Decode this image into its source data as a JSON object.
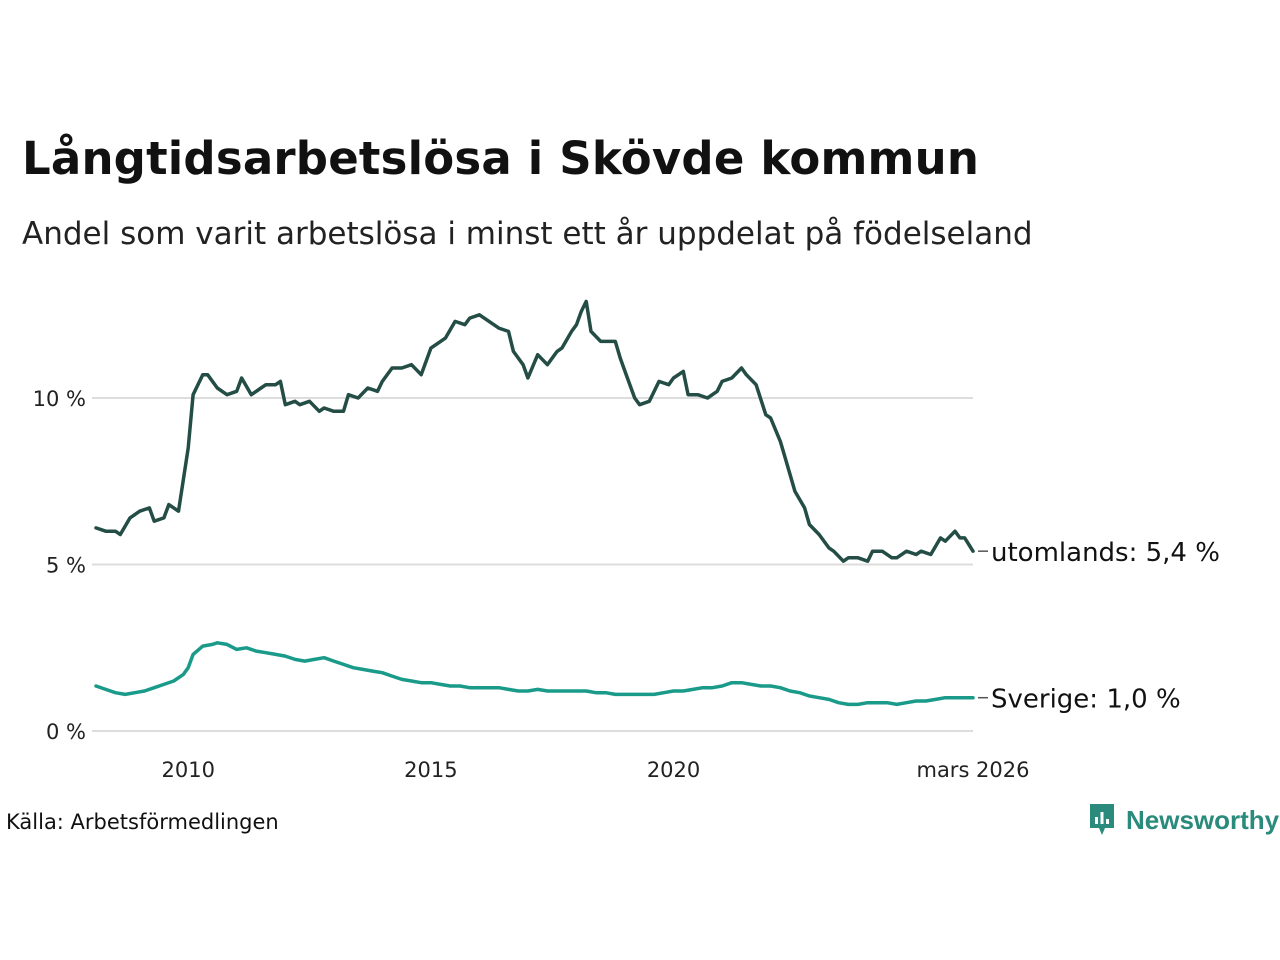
{
  "header": {
    "title": "Långtidsarbetslösa i Skövde kommun",
    "subtitle": "Andel som varit arbetslösa i minst ett år uppdelat på födelseland"
  },
  "footer": {
    "source": "Källa: Arbetsförmedlingen",
    "brand": "Newsworthy"
  },
  "colors": {
    "utomlands": "#234d45",
    "sverige": "#1a9a89",
    "grid": "#dddddd",
    "brand": "#2a8a7c"
  },
  "icons": {
    "brand_logo": "newsworthy-logo-icon"
  },
  "chart_data": {
    "type": "line",
    "title": "Långtidsarbetslösa i Skövde kommun",
    "subtitle": "Andel som varit arbetslösa i minst ett år uppdelat på födelseland",
    "xlabel": "",
    "ylabel": "",
    "xlim": [
      2008.1,
      2026.17
    ],
    "ylim": [
      0,
      13
    ],
    "grid": true,
    "y_ticks": [
      0,
      5,
      10
    ],
    "y_tick_labels": [
      "0 %",
      "5 %",
      "10 %"
    ],
    "x_ticks": [
      2010,
      2015,
      2020,
      2026.17
    ],
    "x_tick_labels": [
      "2010",
      "2015",
      "2020",
      "mars 2026"
    ],
    "series": [
      {
        "name": "utomlands",
        "end_label": "utomlands: 5,4 %",
        "points": [
          [
            2008.1,
            6.1
          ],
          [
            2008.3,
            6.0
          ],
          [
            2008.5,
            6.0
          ],
          [
            2008.6,
            5.9
          ],
          [
            2008.8,
            6.4
          ],
          [
            2009.0,
            6.6
          ],
          [
            2009.2,
            6.7
          ],
          [
            2009.3,
            6.3
          ],
          [
            2009.5,
            6.4
          ],
          [
            2009.6,
            6.8
          ],
          [
            2009.8,
            6.6
          ],
          [
            2010.0,
            8.5
          ],
          [
            2010.1,
            10.1
          ],
          [
            2010.3,
            10.7
          ],
          [
            2010.4,
            10.7
          ],
          [
            2010.6,
            10.3
          ],
          [
            2010.8,
            10.1
          ],
          [
            2011.0,
            10.2
          ],
          [
            2011.1,
            10.6
          ],
          [
            2011.3,
            10.1
          ],
          [
            2011.5,
            10.3
          ],
          [
            2011.6,
            10.4
          ],
          [
            2011.8,
            10.4
          ],
          [
            2011.9,
            10.5
          ],
          [
            2012.0,
            9.8
          ],
          [
            2012.2,
            9.9
          ],
          [
            2012.3,
            9.8
          ],
          [
            2012.5,
            9.9
          ],
          [
            2012.7,
            9.6
          ],
          [
            2012.8,
            9.7
          ],
          [
            2013.0,
            9.6
          ],
          [
            2013.2,
            9.6
          ],
          [
            2013.3,
            10.1
          ],
          [
            2013.5,
            10.0
          ],
          [
            2013.7,
            10.3
          ],
          [
            2013.9,
            10.2
          ],
          [
            2014.0,
            10.5
          ],
          [
            2014.2,
            10.9
          ],
          [
            2014.4,
            10.9
          ],
          [
            2014.6,
            11.0
          ],
          [
            2014.8,
            10.7
          ],
          [
            2015.0,
            11.5
          ],
          [
            2015.2,
            11.7
          ],
          [
            2015.3,
            11.8
          ],
          [
            2015.5,
            12.3
          ],
          [
            2015.7,
            12.2
          ],
          [
            2015.8,
            12.4
          ],
          [
            2016.0,
            12.5
          ],
          [
            2016.2,
            12.3
          ],
          [
            2016.4,
            12.1
          ],
          [
            2016.6,
            12.0
          ],
          [
            2016.7,
            11.4
          ],
          [
            2016.9,
            11.0
          ],
          [
            2017.0,
            10.6
          ],
          [
            2017.2,
            11.3
          ],
          [
            2017.4,
            11.0
          ],
          [
            2017.6,
            11.4
          ],
          [
            2017.7,
            11.5
          ],
          [
            2017.9,
            12.0
          ],
          [
            2018.0,
            12.2
          ],
          [
            2018.1,
            12.6
          ],
          [
            2018.2,
            12.9
          ],
          [
            2018.3,
            12.0
          ],
          [
            2018.5,
            11.7
          ],
          [
            2018.7,
            11.7
          ],
          [
            2018.8,
            11.7
          ],
          [
            2018.9,
            11.2
          ],
          [
            2019.0,
            10.8
          ],
          [
            2019.2,
            10.0
          ],
          [
            2019.3,
            9.8
          ],
          [
            2019.5,
            9.9
          ],
          [
            2019.7,
            10.5
          ],
          [
            2019.9,
            10.4
          ],
          [
            2020.0,
            10.6
          ],
          [
            2020.2,
            10.8
          ],
          [
            2020.3,
            10.1
          ],
          [
            2020.5,
            10.1
          ],
          [
            2020.7,
            10.0
          ],
          [
            2020.9,
            10.2
          ],
          [
            2021.0,
            10.5
          ],
          [
            2021.2,
            10.6
          ],
          [
            2021.4,
            10.9
          ],
          [
            2021.5,
            10.7
          ],
          [
            2021.7,
            10.4
          ],
          [
            2021.9,
            9.5
          ],
          [
            2022.0,
            9.4
          ],
          [
            2022.2,
            8.7
          ],
          [
            2022.3,
            8.2
          ],
          [
            2022.5,
            7.2
          ],
          [
            2022.7,
            6.7
          ],
          [
            2022.8,
            6.2
          ],
          [
            2023.0,
            5.9
          ],
          [
            2023.2,
            5.5
          ],
          [
            2023.3,
            5.4
          ],
          [
            2023.5,
            5.1
          ],
          [
            2023.6,
            5.2
          ],
          [
            2023.8,
            5.2
          ],
          [
            2024.0,
            5.1
          ],
          [
            2024.1,
            5.4
          ],
          [
            2024.3,
            5.4
          ],
          [
            2024.5,
            5.2
          ],
          [
            2024.6,
            5.2
          ],
          [
            2024.8,
            5.4
          ],
          [
            2025.0,
            5.3
          ],
          [
            2025.1,
            5.4
          ],
          [
            2025.3,
            5.3
          ],
          [
            2025.5,
            5.8
          ],
          [
            2025.6,
            5.7
          ],
          [
            2025.8,
            6.0
          ],
          [
            2025.9,
            5.8
          ],
          [
            2026.0,
            5.8
          ],
          [
            2026.17,
            5.4
          ]
        ]
      },
      {
        "name": "Sverige",
        "end_label": "Sverige: 1,0 %",
        "points": [
          [
            2008.1,
            1.35
          ],
          [
            2008.3,
            1.25
          ],
          [
            2008.5,
            1.15
          ],
          [
            2008.7,
            1.1
          ],
          [
            2008.9,
            1.15
          ],
          [
            2009.1,
            1.2
          ],
          [
            2009.3,
            1.3
          ],
          [
            2009.5,
            1.4
          ],
          [
            2009.7,
            1.5
          ],
          [
            2009.9,
            1.7
          ],
          [
            2010.0,
            1.9
          ],
          [
            2010.1,
            2.3
          ],
          [
            2010.3,
            2.55
          ],
          [
            2010.5,
            2.6
          ],
          [
            2010.6,
            2.65
          ],
          [
            2010.8,
            2.6
          ],
          [
            2011.0,
            2.45
          ],
          [
            2011.2,
            2.5
          ],
          [
            2011.4,
            2.4
          ],
          [
            2011.6,
            2.35
          ],
          [
            2011.8,
            2.3
          ],
          [
            2012.0,
            2.25
          ],
          [
            2012.2,
            2.15
          ],
          [
            2012.4,
            2.1
          ],
          [
            2012.6,
            2.15
          ],
          [
            2012.8,
            2.2
          ],
          [
            2013.0,
            2.1
          ],
          [
            2013.2,
            2.0
          ],
          [
            2013.4,
            1.9
          ],
          [
            2013.6,
            1.85
          ],
          [
            2013.8,
            1.8
          ],
          [
            2014.0,
            1.75
          ],
          [
            2014.2,
            1.65
          ],
          [
            2014.4,
            1.55
          ],
          [
            2014.6,
            1.5
          ],
          [
            2014.8,
            1.45
          ],
          [
            2015.0,
            1.45
          ],
          [
            2015.2,
            1.4
          ],
          [
            2015.4,
            1.35
          ],
          [
            2015.6,
            1.35
          ],
          [
            2015.8,
            1.3
          ],
          [
            2016.0,
            1.3
          ],
          [
            2016.2,
            1.3
          ],
          [
            2016.4,
            1.3
          ],
          [
            2016.6,
            1.25
          ],
          [
            2016.8,
            1.2
          ],
          [
            2017.0,
            1.2
          ],
          [
            2017.2,
            1.25
          ],
          [
            2017.4,
            1.2
          ],
          [
            2017.6,
            1.2
          ],
          [
            2017.8,
            1.2
          ],
          [
            2018.0,
            1.2
          ],
          [
            2018.2,
            1.2
          ],
          [
            2018.4,
            1.15
          ],
          [
            2018.6,
            1.15
          ],
          [
            2018.8,
            1.1
          ],
          [
            2019.0,
            1.1
          ],
          [
            2019.2,
            1.1
          ],
          [
            2019.4,
            1.1
          ],
          [
            2019.6,
            1.1
          ],
          [
            2019.8,
            1.15
          ],
          [
            2020.0,
            1.2
          ],
          [
            2020.2,
            1.2
          ],
          [
            2020.4,
            1.25
          ],
          [
            2020.6,
            1.3
          ],
          [
            2020.8,
            1.3
          ],
          [
            2021.0,
            1.35
          ],
          [
            2021.2,
            1.45
          ],
          [
            2021.4,
            1.45
          ],
          [
            2021.6,
            1.4
          ],
          [
            2021.8,
            1.35
          ],
          [
            2022.0,
            1.35
          ],
          [
            2022.2,
            1.3
          ],
          [
            2022.4,
            1.2
          ],
          [
            2022.6,
            1.15
          ],
          [
            2022.8,
            1.05
          ],
          [
            2023.0,
            1.0
          ],
          [
            2023.2,
            0.95
          ],
          [
            2023.4,
            0.85
          ],
          [
            2023.6,
            0.8
          ],
          [
            2023.8,
            0.8
          ],
          [
            2024.0,
            0.85
          ],
          [
            2024.2,
            0.85
          ],
          [
            2024.4,
            0.85
          ],
          [
            2024.6,
            0.8
          ],
          [
            2024.8,
            0.85
          ],
          [
            2025.0,
            0.9
          ],
          [
            2025.2,
            0.9
          ],
          [
            2025.4,
            0.95
          ],
          [
            2025.6,
            1.0
          ],
          [
            2025.8,
            1.0
          ],
          [
            2026.0,
            1.0
          ],
          [
            2026.17,
            1.0
          ]
        ]
      }
    ]
  }
}
